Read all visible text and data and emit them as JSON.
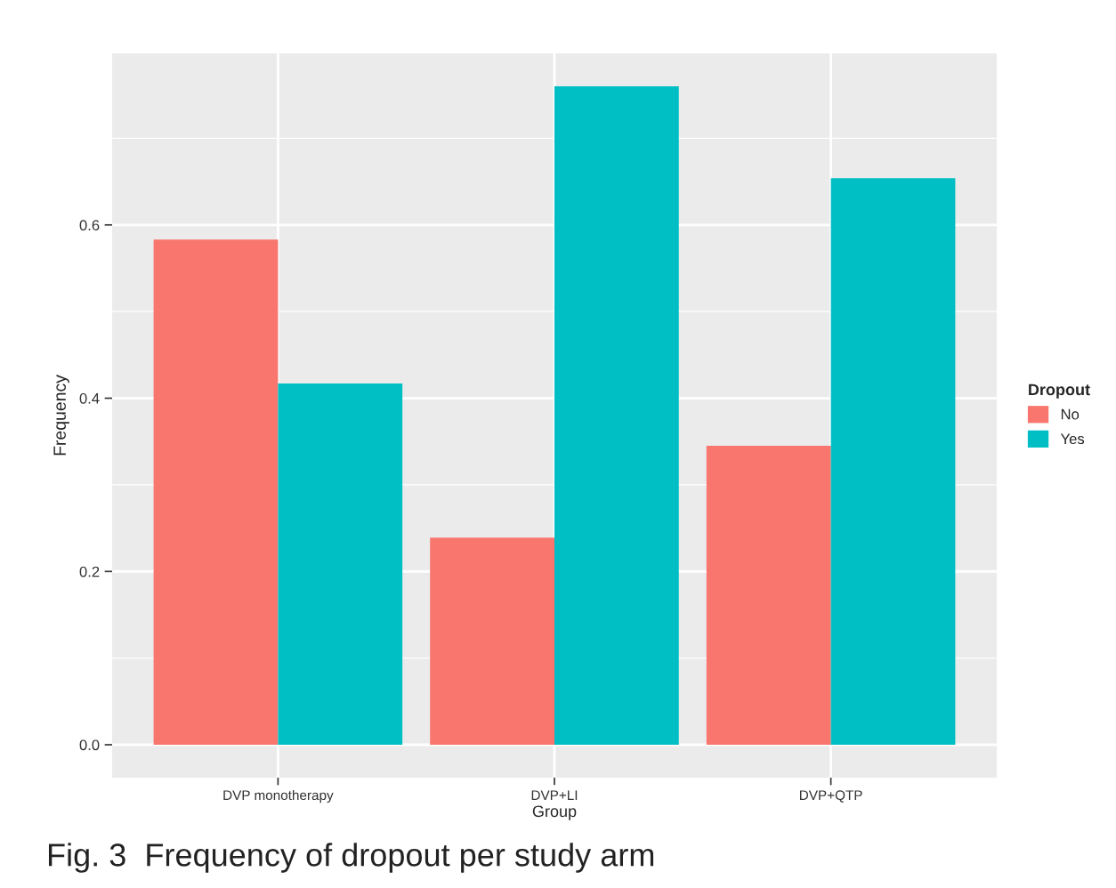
{
  "chart_data": {
    "type": "bar",
    "xlabel": "Group",
    "ylabel": "Frequency",
    "legend_title": "Dropout",
    "categories": [
      "DVP monotherapy",
      "DVP+LI",
      "DVP+QTP"
    ],
    "series": [
      {
        "name": "No",
        "color": "#f8766d",
        "values": [
          0.583,
          0.239,
          0.345
        ]
      },
      {
        "name": "Yes",
        "color": "#00bfc4",
        "values": [
          0.417,
          0.76,
          0.654
        ]
      }
    ],
    "ylim": [
      -0.038,
      0.798
    ],
    "yticks": [
      {
        "value": 0,
        "label": "0.0"
      },
      0.2,
      0.4,
      0.6
    ],
    "grid": true,
    "legend": "right",
    "annotations": [
      "Fig. 3  Frequency of dropout per study arm"
    ]
  }
}
